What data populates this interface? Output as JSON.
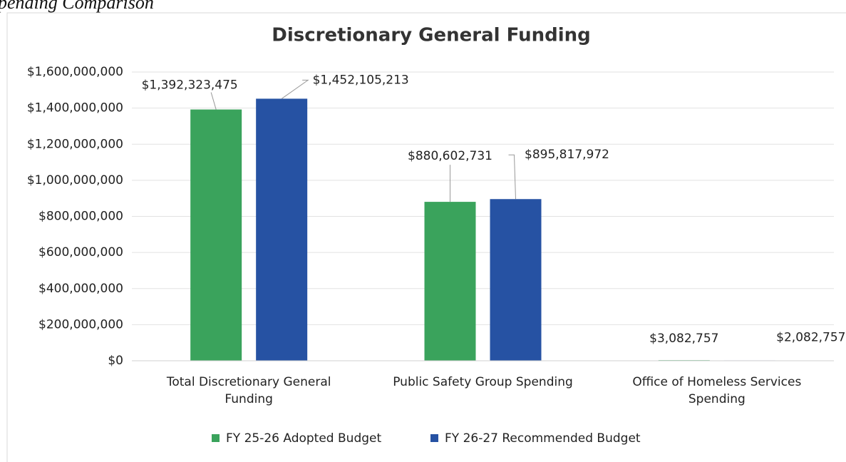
{
  "header": {
    "caption": "Spending Comparison"
  },
  "chart_data": {
    "type": "bar",
    "title": "Discretionary General Funding",
    "categories": [
      "Total Discretionary General Funding",
      "Public Safety Group Spending",
      "Office of Homeless Services Spending"
    ],
    "series": [
      {
        "name": "FY 25-26 Adopted Budget",
        "color": "#3aa35c",
        "values": [
          1392323475,
          880602731,
          3082757
        ],
        "value_labels": [
          "$1,392,323,475",
          "$880,602,731",
          "$3,082,757"
        ]
      },
      {
        "name": "FY 26-27 Recommended Budget",
        "color": "#2652a3",
        "values": [
          1452105213,
          895817972,
          2082757
        ],
        "value_labels": [
          "$1,452,105,213",
          "$895,817,972",
          "$2,082,757"
        ]
      }
    ],
    "ylim": [
      0,
      1600000000
    ],
    "yticks": [
      {
        "value": 0,
        "label": "$0"
      },
      {
        "value": 200000000,
        "label": "$200,000,000"
      },
      {
        "value": 400000000,
        "label": "$400,000,000"
      },
      {
        "value": 600000000,
        "label": "$600,000,000"
      },
      {
        "value": 800000000,
        "label": "$800,000,000"
      },
      {
        "value": 1000000000,
        "label": "$1,000,000,000"
      },
      {
        "value": 1200000000,
        "label": "$1,200,000,000"
      },
      {
        "value": 1400000000,
        "label": "$1,400,000,000"
      },
      {
        "value": 1600000000,
        "label": "$1,600,000,000"
      }
    ],
    "grid": true,
    "legend": "bottom"
  }
}
